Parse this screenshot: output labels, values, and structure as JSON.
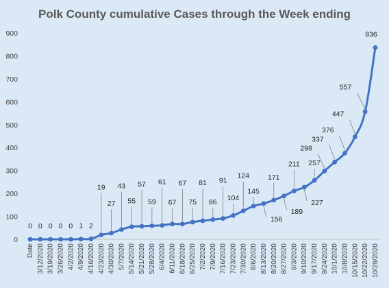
{
  "chart_data": {
    "type": "line",
    "title": "Polk County cumulative Cases through the Week ending",
    "xlabel": "",
    "ylabel": "",
    "ylim": [
      0,
      900
    ],
    "yticks": [
      0,
      100,
      200,
      300,
      400,
      500,
      600,
      700,
      800,
      900
    ],
    "grid": false,
    "legend": "none",
    "categories": [
      "Date",
      "3/12/2020",
      "3/19/2020",
      "3/26/2020",
      "4/2/2020",
      "4/9/2020",
      "4/16/2020",
      "4/23/2020",
      "4/30/2020",
      "5/7/2020",
      "5/14/2020",
      "5/21/2020",
      "5/28/2020",
      "6/4/2020",
      "6/11/2020",
      "6/18/2020",
      "6/25/2020",
      "7/2/2020",
      "7/9/2020",
      "7/16/2020",
      "7/23/2020",
      "7/30/2020",
      "8/6/2020",
      "8/13/2020",
      "8/20/2020",
      "8/27/2020",
      "9/3/2020",
      "9/10/2020",
      "9/17/2020",
      "9/24/2020",
      "10/1/2020",
      "10/8/2020",
      "10/15/2020",
      "10/22/2020",
      "10/29/2020"
    ],
    "series": [
      {
        "values": [
          0,
          0,
          0,
          0,
          0,
          1,
          2,
          19,
          27,
          43,
          55,
          57,
          59,
          61,
          67,
          67,
          75,
          81,
          86,
          91,
          104,
          124,
          145,
          156,
          171,
          189,
          211,
          227,
          257,
          298,
          337,
          376,
          447,
          557,
          836
        ],
        "color": "#4472c4"
      }
    ]
  }
}
